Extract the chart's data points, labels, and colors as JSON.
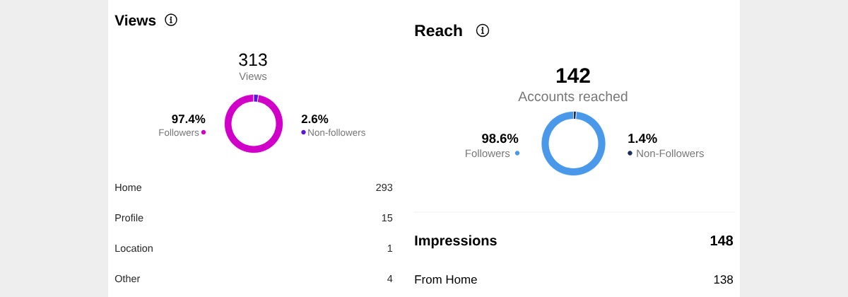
{
  "chart_data": [
    {
      "type": "donut",
      "title": "Views",
      "annotations": [
        "313",
        "Views"
      ],
      "categories": [
        "Followers",
        "Non-followers"
      ],
      "values": [
        97.4,
        2.6
      ],
      "colors": [
        "#d100c9",
        "#5b17d9"
      ],
      "value_labels": [
        "97.4%",
        "2.6%"
      ]
    },
    {
      "type": "other",
      "categories": [
        "Home",
        "Profile",
        "Location",
        "Other"
      ],
      "values": [
        293,
        15,
        1,
        4
      ],
      "data_labels": true
    },
    {
      "type": "donut",
      "title": "Reach",
      "annotations": [
        "142",
        "Accounts reached"
      ],
      "categories": [
        "Followers",
        "Non-Followers"
      ],
      "values": [
        98.6,
        1.4
      ],
      "colors": [
        "#4a98e9",
        "#1b2f5c"
      ],
      "value_labels": [
        "98.6%",
        "1.4%"
      ]
    },
    {
      "type": "other",
      "categories": [
        "Impressions",
        "From Home"
      ],
      "values": [
        148,
        138
      ],
      "data_labels": true
    }
  ]
}
